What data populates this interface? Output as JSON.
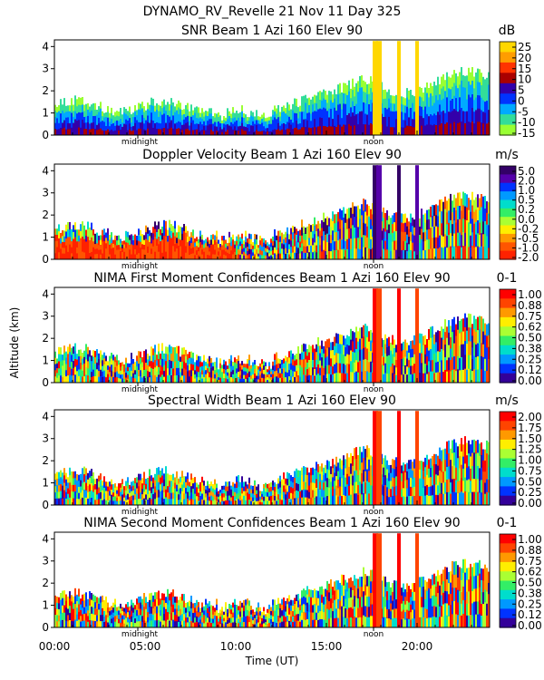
{
  "header": {
    "title": "DYNAMO_RV_Revelle   21 Nov 11 Day 325"
  },
  "axes": {
    "ylabel": "Altitude (km)",
    "xlabel": "Time (UT)",
    "x_ticks": [
      "00:00",
      "05:00",
      "10:00",
      "15:00",
      "20:00"
    ],
    "x_tick_values": [
      0,
      5,
      10,
      15,
      20
    ],
    "marker_midnight": "midnight",
    "marker_noon": "noon"
  },
  "chart_data": [
    {
      "type": "heatmap",
      "title": "SNR Beam 1 Azi 160 Elev 90",
      "unit": "dB",
      "x_range": [
        0,
        24
      ],
      "ylim": [
        0,
        4.3
      ],
      "y_ticks": [
        0,
        1,
        2,
        3,
        4
      ],
      "colorbar_ticks": [
        "25",
        "20",
        "15",
        "10",
        "5",
        "0",
        "-5",
        "-10",
        "-15"
      ],
      "colorbar_colors": [
        "#ffd700",
        "#ff9d00",
        "#ff3300",
        "#aa0000",
        "#3300aa",
        "#0033ff",
        "#00aaff",
        "#33dd99",
        "#99ff33"
      ],
      "midnight_hour": 4.6,
      "noon_hour": 17.6
    },
    {
      "type": "heatmap",
      "title": "Doppler Velocity Beam 1 Azi 160 Elev 90",
      "unit": "m/s",
      "x_range": [
        0,
        24
      ],
      "ylim": [
        0,
        4.3
      ],
      "y_ticks": [
        0,
        1,
        2,
        3,
        4
      ],
      "colorbar_ticks": [
        "5.0",
        "2.0",
        "1.0",
        "0.5",
        "0.2",
        "0.0",
        "-0.2",
        "-0.5",
        "-1.0",
        "-2.0"
      ],
      "colorbar_colors": [
        "#330066",
        "#5500aa",
        "#0033ff",
        "#0099ff",
        "#00ddcc",
        "#33ee66",
        "#aaff33",
        "#ffee00",
        "#ff9900",
        "#ff5500",
        "#ff2200"
      ],
      "midnight_hour": 4.6,
      "noon_hour": 17.6
    },
    {
      "type": "heatmap",
      "title": "NIMA First Moment Confidences Beam 1 Azi 160 Elev 90",
      "unit": "0-1",
      "x_range": [
        0,
        24
      ],
      "ylim": [
        0,
        4.3
      ],
      "y_ticks": [
        0,
        1,
        2,
        3,
        4
      ],
      "colorbar_ticks": [
        "1.00",
        "0.88",
        "0.75",
        "0.62",
        "0.50",
        "0.38",
        "0.25",
        "0.12",
        "0.00"
      ],
      "colorbar_colors": [
        "#ff0000",
        "#ff4400",
        "#ff9900",
        "#ffee00",
        "#aaff33",
        "#33ee66",
        "#00ddcc",
        "#0099ff",
        "#0033ff",
        "#330099"
      ],
      "midnight_hour": 4.6,
      "noon_hour": 17.6
    },
    {
      "type": "heatmap",
      "title": "Spectral Width Beam 1 Azi 160 Elev 90",
      "unit": "m/s",
      "x_range": [
        0,
        24
      ],
      "ylim": [
        0,
        4.3
      ],
      "y_ticks": [
        0,
        1,
        2,
        3,
        4
      ],
      "colorbar_ticks": [
        "2.00",
        "1.75",
        "1.50",
        "1.25",
        "1.00",
        "0.75",
        "0.50",
        "0.25",
        "0.00"
      ],
      "colorbar_colors": [
        "#ff0000",
        "#ff4400",
        "#ff9900",
        "#ffee00",
        "#aaff33",
        "#33ee66",
        "#00ddcc",
        "#0099ff",
        "#0033ff",
        "#330099"
      ],
      "midnight_hour": 4.6,
      "noon_hour": 17.6
    },
    {
      "type": "heatmap",
      "title": "NIMA Second Moment Confidences Beam 1 Azi 160 Elev 90",
      "unit": "0-1",
      "x_range": [
        0,
        24
      ],
      "ylim": [
        0,
        4.3
      ],
      "y_ticks": [
        0,
        1,
        2,
        3,
        4
      ],
      "colorbar_ticks": [
        "1.00",
        "0.88",
        "0.75",
        "0.62",
        "0.50",
        "0.38",
        "0.25",
        "0.12",
        "0.00"
      ],
      "colorbar_colors": [
        "#ff0000",
        "#ff4400",
        "#ff9900",
        "#ffee00",
        "#aaff33",
        "#33ee66",
        "#00ddcc",
        "#0099ff",
        "#0033ff",
        "#330099"
      ],
      "midnight_hour": 4.6,
      "noon_hour": 17.6
    }
  ]
}
